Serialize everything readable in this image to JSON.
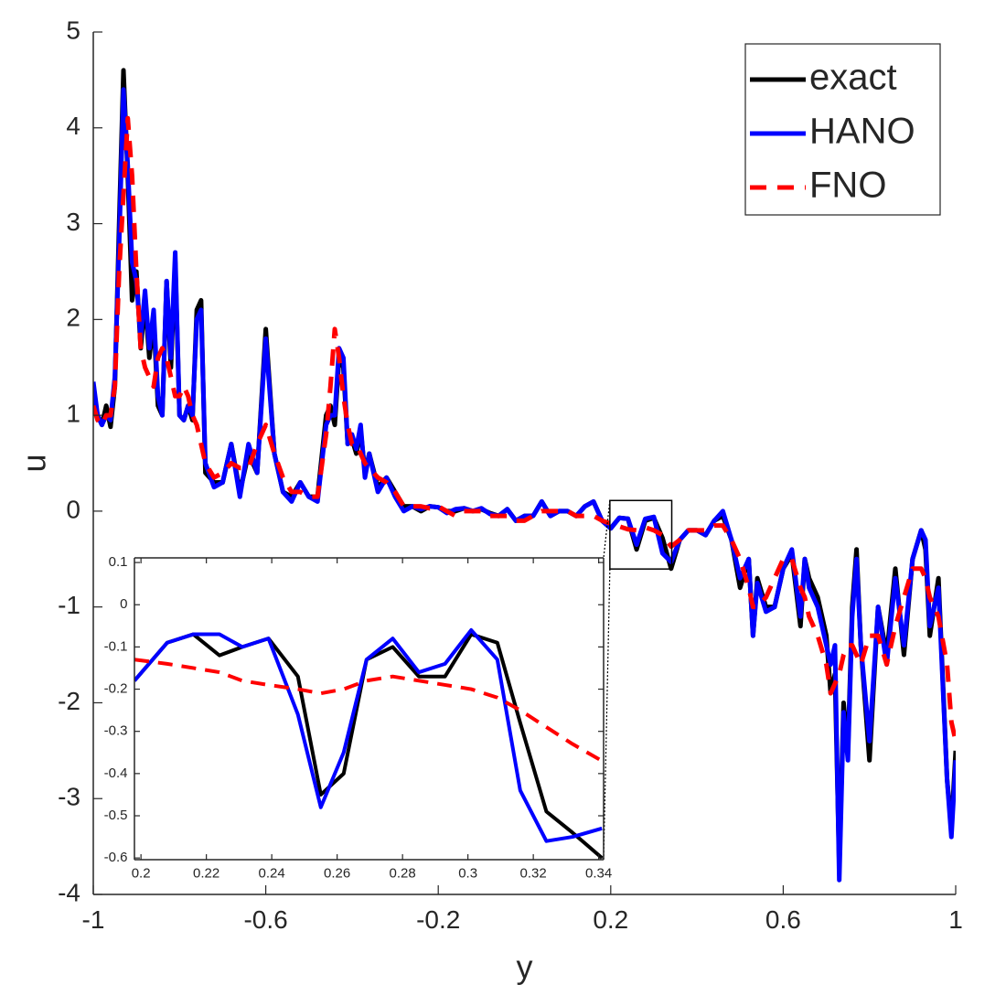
{
  "chart_data": [
    {
      "type": "line",
      "xlabel": "y",
      "ylabel": "u",
      "legend": "northeast",
      "xlim": [
        -1,
        1
      ],
      "ylim": [
        -4,
        5
      ],
      "xticks": [
        -1,
        -0.6,
        -0.2,
        0.2,
        0.6,
        1
      ],
      "yticks": [
        -4,
        -3,
        -2,
        -1,
        0,
        1,
        2,
        3,
        4,
        5
      ],
      "x": [
        -1,
        -0.99,
        -0.98,
        -0.97,
        -0.96,
        -0.95,
        -0.94,
        -0.93,
        -0.92,
        -0.91,
        -0.9,
        -0.89,
        -0.88,
        -0.87,
        -0.86,
        -0.85,
        -0.84,
        -0.83,
        -0.82,
        -0.81,
        -0.8,
        -0.79,
        -0.78,
        -0.77,
        -0.76,
        -0.75,
        -0.74,
        -0.72,
        -0.7,
        -0.68,
        -0.66,
        -0.64,
        -0.62,
        -0.6,
        -0.58,
        -0.56,
        -0.54,
        -0.52,
        -0.5,
        -0.48,
        -0.46,
        -0.45,
        -0.44,
        -0.43,
        -0.42,
        -0.41,
        -0.4,
        -0.39,
        -0.38,
        -0.37,
        -0.36,
        -0.34,
        -0.32,
        -0.3,
        -0.28,
        -0.26,
        -0.24,
        -0.22,
        -0.2,
        -0.18,
        -0.16,
        -0.14,
        -0.12,
        -0.1,
        -0.08,
        -0.06,
        -0.04,
        -0.02,
        0,
        0.02,
        0.04,
        0.06,
        0.08,
        0.1,
        0.12,
        0.14,
        0.16,
        0.18,
        0.2,
        0.22,
        0.24,
        0.26,
        0.28,
        0.3,
        0.32,
        0.34,
        0.36,
        0.38,
        0.4,
        0.42,
        0.44,
        0.46,
        0.48,
        0.5,
        0.52,
        0.53,
        0.54,
        0.56,
        0.58,
        0.6,
        0.62,
        0.64,
        0.65,
        0.66,
        0.68,
        0.7,
        0.71,
        0.72,
        0.73,
        0.74,
        0.75,
        0.76,
        0.77,
        0.78,
        0.8,
        0.82,
        0.84,
        0.86,
        0.88,
        0.9,
        0.92,
        0.93,
        0.94,
        0.96,
        0.98,
        0.99,
        1
      ],
      "series": [
        {
          "name": "exact",
          "color": "#000000",
          "line_style": "solid",
          "values": [
            1.2,
            1.0,
            0.9,
            1.1,
            0.88,
            1.3,
            3.0,
            4.6,
            3.5,
            2.2,
            2.5,
            1.7,
            2.2,
            1.6,
            2.0,
            1.1,
            1.0,
            2.4,
            1.5,
            2.6,
            1.0,
            0.95,
            1.1,
            0.95,
            2.1,
            2.2,
            0.4,
            0.3,
            0.3,
            0.7,
            0.2,
            0.6,
            0.4,
            1.9,
            0.6,
            0.2,
            0.15,
            0.3,
            0.15,
            0.15,
            1.0,
            1.1,
            0.9,
            1.6,
            1.5,
            0.7,
            0.75,
            0.6,
            0.85,
            0.4,
            0.6,
            0.25,
            0.35,
            0.2,
            0.05,
            0.05,
            0.0,
            0.05,
            0.04,
            0.0,
            0.0,
            0.03,
            0.0,
            0.02,
            -0.02,
            -0.05,
            0.02,
            -0.1,
            -0.05,
            -0.05,
            0.1,
            -0.05,
            0.0,
            0.0,
            -0.05,
            0.05,
            0.1,
            -0.1,
            -0.18,
            -0.07,
            -0.08,
            -0.4,
            -0.1,
            -0.07,
            -0.28,
            -0.6,
            -0.3,
            -0.2,
            -0.2,
            -0.25,
            -0.1,
            -0.05,
            -0.3,
            -0.8,
            -0.5,
            -1.3,
            -0.7,
            -1.0,
            -1.0,
            -0.6,
            -0.45,
            -1.2,
            -0.5,
            -0.7,
            -0.9,
            -1.3,
            -1.9,
            -1.7,
            -3.7,
            -2.0,
            -2.5,
            -1.0,
            -0.4,
            -1.4,
            -2.6,
            -1.0,
            -1.5,
            -0.6,
            -1.5,
            -0.5,
            -0.2,
            -0.4,
            -1.3,
            -0.7,
            -2.8,
            -3.3,
            -2.5
          ]
        },
        {
          "name": "HANO",
          "color": "#0000ff",
          "line_style": "solid",
          "values": [
            1.35,
            1.0,
            0.9,
            1.0,
            0.95,
            1.4,
            2.8,
            4.4,
            3.6,
            2.6,
            2.4,
            1.8,
            2.3,
            1.7,
            2.1,
            1.2,
            1.0,
            2.4,
            1.6,
            2.7,
            1.0,
            0.95,
            1.1,
            1.0,
            2.0,
            2.1,
            0.5,
            0.25,
            0.3,
            0.7,
            0.15,
            0.7,
            0.4,
            1.8,
            0.6,
            0.2,
            0.1,
            0.3,
            0.15,
            0.1,
            0.9,
            1.0,
            1.0,
            1.7,
            1.6,
            0.7,
            0.8,
            0.65,
            0.9,
            0.35,
            0.6,
            0.2,
            0.35,
            0.15,
            0.0,
            0.05,
            0.02,
            0.05,
            0.04,
            -0.02,
            0.02,
            0.03,
            0.0,
            0.03,
            -0.03,
            -0.05,
            0.02,
            -0.1,
            -0.05,
            -0.05,
            0.1,
            -0.05,
            0.0,
            0.0,
            -0.05,
            0.05,
            0.1,
            -0.1,
            -0.18,
            -0.07,
            -0.08,
            -0.35,
            -0.08,
            -0.06,
            -0.44,
            -0.53,
            -0.3,
            -0.2,
            -0.2,
            -0.25,
            -0.1,
            0.0,
            -0.3,
            -0.7,
            -0.5,
            -1.3,
            -0.75,
            -1.05,
            -1.0,
            -0.6,
            -0.4,
            -1.1,
            -0.5,
            -0.8,
            -1.0,
            -1.4,
            -1.6,
            -1.4,
            -3.85,
            -2.1,
            -2.6,
            -1.1,
            -0.5,
            -1.4,
            -2.4,
            -1.0,
            -1.6,
            -0.7,
            -1.4,
            -0.5,
            -0.2,
            -0.3,
            -1.2,
            -0.8,
            -2.8,
            -3.4,
            -2.6
          ]
        },
        {
          "name": "FNO",
          "color": "#ff0000",
          "line_style": "dashed",
          "values": [
            1.1,
            0.95,
            0.9,
            1.0,
            1.0,
            1.3,
            2.5,
            3.3,
            4.1,
            3.5,
            2.5,
            1.7,
            1.5,
            1.4,
            1.3,
            1.6,
            1.7,
            1.6,
            1.4,
            1.2,
            1.2,
            1.3,
            1.2,
            1.0,
            0.9,
            0.7,
            0.5,
            0.35,
            0.4,
            0.5,
            0.45,
            0.45,
            0.7,
            0.9,
            0.6,
            0.35,
            0.2,
            0.2,
            0.15,
            0.15,
            0.8,
            1.3,
            1.9,
            1.6,
            1.2,
            0.9,
            0.7,
            0.7,
            0.6,
            0.5,
            0.45,
            0.35,
            0.3,
            0.2,
            0.05,
            0.05,
            0.05,
            0.03,
            0.05,
            0.0,
            -0.05,
            0.0,
            0.0,
            0.0,
            -0.05,
            -0.05,
            -0.05,
            -0.1,
            -0.1,
            -0.05,
            0.0,
            0.0,
            0.0,
            0.0,
            -0.05,
            -0.05,
            -0.05,
            -0.1,
            -0.13,
            -0.16,
            -0.19,
            -0.2,
            -0.17,
            -0.2,
            -0.25,
            -0.37,
            -0.3,
            -0.2,
            -0.2,
            -0.2,
            -0.15,
            -0.15,
            -0.3,
            -0.5,
            -0.8,
            -1.0,
            -1.0,
            -0.9,
            -0.7,
            -0.5,
            -0.5,
            -0.8,
            -0.9,
            -1.1,
            -1.3,
            -1.6,
            -1.9,
            -1.8,
            -1.7,
            -1.5,
            -1.4,
            -1.4,
            -1.5,
            -1.6,
            -1.3,
            -1.3,
            -1.6,
            -1.2,
            -0.9,
            -0.6,
            -0.6,
            -0.7,
            -0.9,
            -1.1,
            -1.6,
            -2.2,
            -2.4
          ]
        }
      ]
    },
    {
      "type": "line",
      "xlim": [
        0.198,
        0.3415
      ],
      "ylim": [
        -0.604,
        0.111
      ],
      "xticks": [
        0.2,
        0.22,
        0.24,
        0.26,
        0.28,
        0.3,
        0.32,
        0.34
      ],
      "yticks": [
        -0.6,
        -0.5,
        -0.4,
        -0.3,
        -0.2,
        -0.1,
        0,
        0.1
      ],
      "x": [
        0.198,
        0.208,
        0.216,
        0.224,
        0.231,
        0.239,
        0.248,
        0.255,
        0.262,
        0.269,
        0.277,
        0.285,
        0.293,
        0.301,
        0.309,
        0.316,
        0.324,
        0.332,
        0.341
      ],
      "series": [
        {
          "color": "#000000",
          "line_style": "solid",
          "values": [
            -0.18,
            -0.09,
            -0.07,
            -0.12,
            -0.1,
            -0.08,
            -0.17,
            -0.45,
            -0.4,
            -0.13,
            -0.1,
            -0.17,
            -0.17,
            -0.07,
            -0.09,
            -0.28,
            -0.49,
            -0.54,
            -0.6
          ]
        },
        {
          "color": "#0000ff",
          "line_style": "solid",
          "values": [
            -0.18,
            -0.09,
            -0.07,
            -0.07,
            -0.1,
            -0.08,
            -0.26,
            -0.48,
            -0.35,
            -0.13,
            -0.08,
            -0.16,
            -0.14,
            -0.06,
            -0.13,
            -0.44,
            -0.56,
            -0.55,
            -0.53
          ]
        },
        {
          "color": "#ff0000",
          "line_style": "dashed",
          "values": [
            -0.13,
            -0.14,
            -0.15,
            -0.16,
            -0.18,
            -0.19,
            -0.2,
            -0.21,
            -0.2,
            -0.18,
            -0.17,
            -0.18,
            -0.19,
            -0.2,
            -0.22,
            -0.25,
            -0.29,
            -0.33,
            -0.37
          ]
        }
      ]
    }
  ]
}
